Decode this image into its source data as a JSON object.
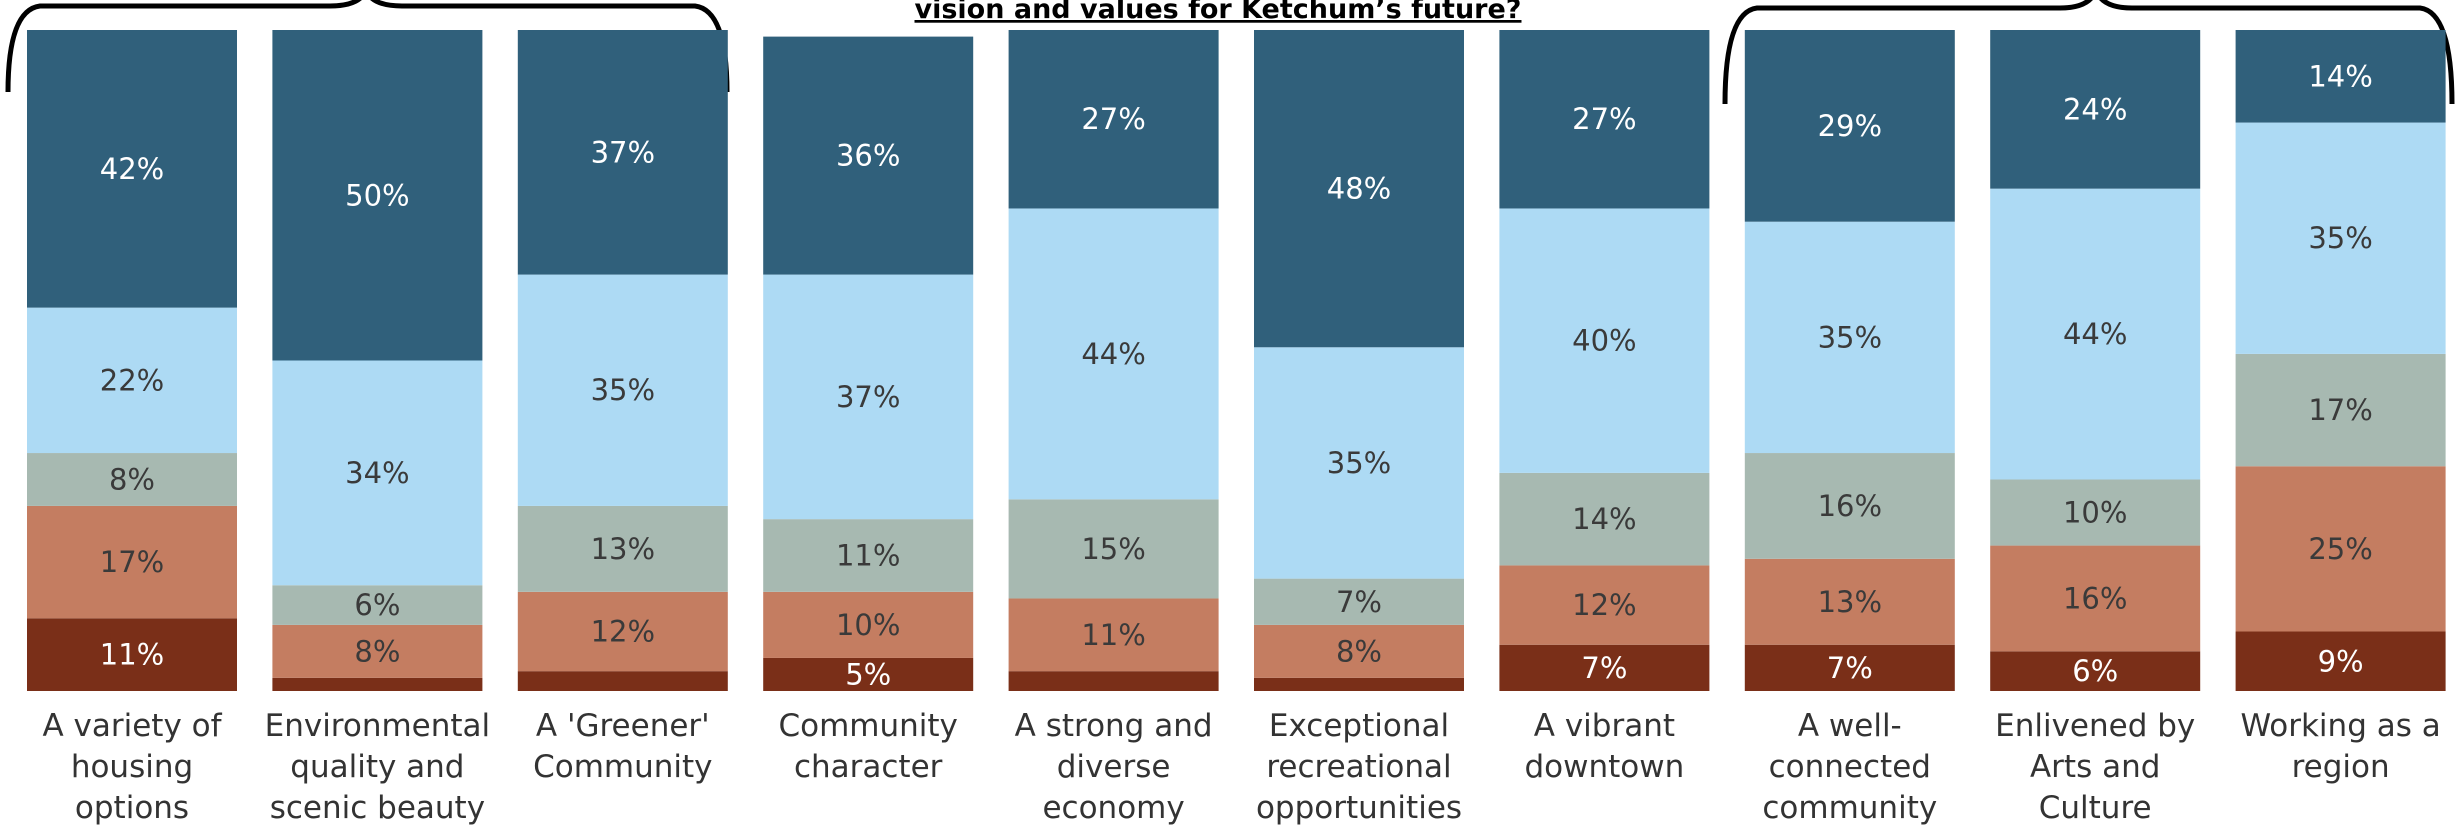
{
  "chart_data": {
    "type": "stacked_bar",
    "title": "vision and values for Ketchum’s future?",
    "categories": [
      "A variety of housing options",
      "Environmental quality and scenic beauty",
      "A 'Greener' Community",
      "Community character",
      "A strong and diverse economy",
      "Exceptional recreational opportunities",
      "A vibrant downtown",
      "A well-connected community",
      "Enlivened by Arts and Culture",
      "Working as a region"
    ],
    "ylim": [
      0,
      100
    ],
    "series": [
      {
        "color": "#7a2f18",
        "label_color": "#ffffff",
        "values": [
          11,
          2,
          3,
          5,
          3,
          2,
          7,
          7,
          6,
          9
        ],
        "value_labels": [
          "11%",
          null,
          null,
          "5%",
          null,
          null,
          "7%",
          "7%",
          "6%",
          "9%"
        ]
      },
      {
        "color": "#c47d61",
        "label_color": "#3a3a3a",
        "values": [
          17,
          8,
          12,
          10,
          11,
          8,
          12,
          13,
          16,
          25
        ],
        "value_labels": [
          "17%",
          "8%",
          "12%",
          "10%",
          "11%",
          "8%",
          "12%",
          "13%",
          "16%",
          "25%"
        ]
      },
      {
        "color": "#a7b9b1",
        "label_color": "#3a3a3a",
        "values": [
          8,
          6,
          13,
          11,
          15,
          7,
          14,
          16,
          10,
          17
        ],
        "value_labels": [
          "8%",
          "6%",
          "13%",
          "11%",
          "15%",
          "7%",
          "14%",
          "16%",
          "10%",
          "17%"
        ]
      },
      {
        "color": "#addaf4",
        "label_color": "#3a3a3a",
        "values": [
          22,
          34,
          35,
          37,
          44,
          35,
          40,
          35,
          44,
          35
        ],
        "value_labels": [
          "22%",
          "34%",
          "35%",
          "37%",
          "44%",
          "35%",
          "40%",
          "35%",
          "44%",
          "35%"
        ]
      },
      {
        "color": "#30607b",
        "label_color": "#ffffff",
        "values": [
          42,
          50,
          37,
          36,
          27,
          48,
          27,
          29,
          24,
          14
        ],
        "value_labels": [
          "42%",
          "50%",
          "37%",
          "36%",
          "27%",
          "48%",
          "27%",
          "29%",
          "24%",
          "14%"
        ]
      }
    ]
  }
}
